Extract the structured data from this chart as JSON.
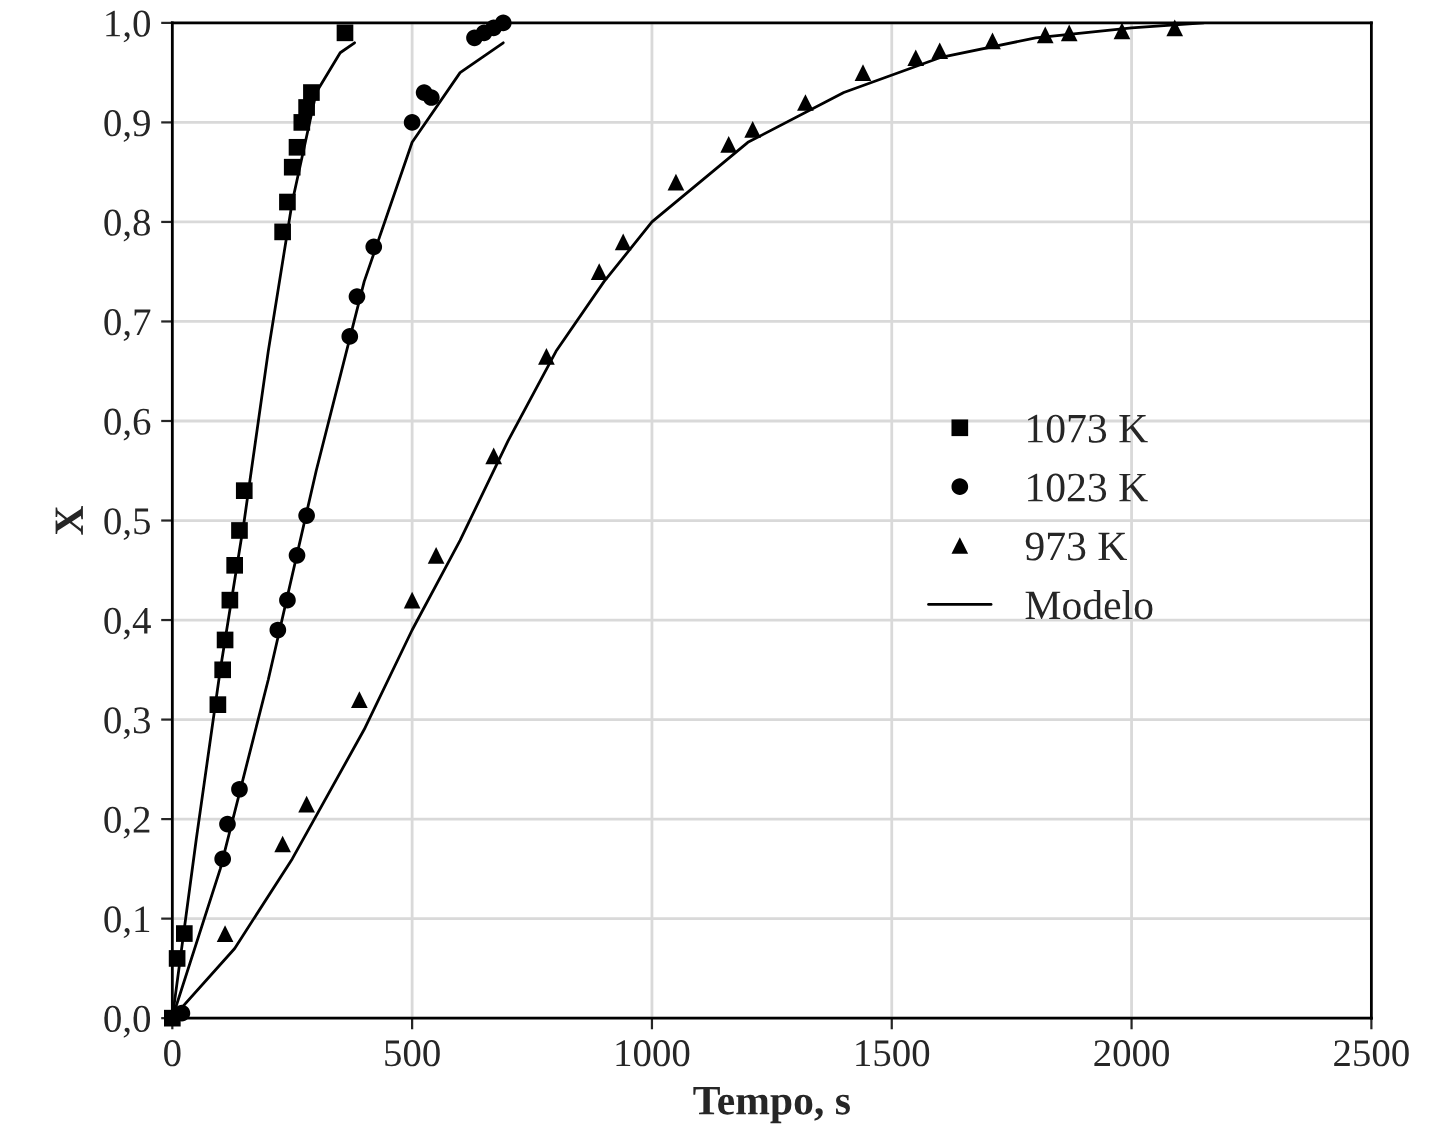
{
  "chart_data": {
    "type": "scatter",
    "xlabel": "Tempo, s",
    "ylabel": "X",
    "xlim": [
      0,
      2500
    ],
    "xticks": [
      0,
      500,
      1000,
      1500,
      2000,
      2500
    ],
    "ylim": [
      0,
      1
    ],
    "yticks": [
      {
        "value": 0,
        "label": "0,0"
      },
      {
        "value": 0.1,
        "label": "0,1"
      },
      {
        "value": 0.2,
        "label": "0,2"
      },
      {
        "value": 0.3,
        "label": "0,3"
      },
      {
        "value": 0.4,
        "label": "0,4"
      },
      {
        "value": 0.5,
        "label": "0,5"
      },
      {
        "value": 0.6,
        "label": "0,6"
      },
      {
        "value": 0.7,
        "label": "0,7"
      },
      {
        "value": 0.8,
        "label": "0,8"
      },
      {
        "value": 0.9,
        "label": "0,9"
      },
      {
        "value": 1.0,
        "label": "1,0"
      }
    ],
    "grid": true,
    "legend": "right",
    "series": [
      {
        "name": "1073 K",
        "marker": "square",
        "color": "#000000",
        "x": [
          0,
          10,
          25,
          95,
          105,
          110,
          120,
          130,
          140,
          150,
          230,
          240,
          250,
          260,
          270,
          280,
          290,
          360
        ],
        "values": [
          0,
          0.06,
          0.085,
          0.315,
          0.35,
          0.38,
          0.42,
          0.455,
          0.49,
          0.53,
          0.79,
          0.82,
          0.855,
          0.875,
          0.9,
          0.915,
          0.93,
          0.99
        ]
      },
      {
        "name": "1023 K",
        "marker": "circle",
        "color": "#000000",
        "x": [
          20,
          105,
          115,
          140,
          220,
          240,
          260,
          280,
          370,
          385,
          420,
          500,
          525,
          540,
          630,
          650,
          670,
          690
        ],
        "values": [
          0.005,
          0.16,
          0.195,
          0.23,
          0.39,
          0.42,
          0.465,
          0.505,
          0.685,
          0.725,
          0.775,
          0.9,
          0.93,
          0.925,
          0.985,
          0.99,
          0.995,
          1.0
        ]
      },
      {
        "name": "973 K",
        "marker": "triangle",
        "color": "#000000",
        "x": [
          110,
          230,
          280,
          390,
          500,
          550,
          670,
          780,
          890,
          940,
          1050,
          1160,
          1210,
          1320,
          1440,
          1550,
          1600,
          1710,
          1820,
          1870,
          1980,
          2090
        ],
        "values": [
          0.085,
          0.175,
          0.215,
          0.32,
          0.42,
          0.465,
          0.565,
          0.665,
          0.75,
          0.78,
          0.84,
          0.878,
          0.893,
          0.92,
          0.95,
          0.965,
          0.972,
          0.982,
          0.988,
          0.99,
          0.992,
          0.995
        ]
      },
      {
        "name": "Modelo",
        "type": "line",
        "marker": "none",
        "color": "#000000",
        "x": [
          0,
          50,
          100,
          150,
          200,
          250,
          300,
          350,
          380
        ],
        "values": [
          0,
          0.18,
          0.35,
          0.5,
          0.67,
          0.82,
          0.93,
          0.97,
          0.98
        ]
      },
      {
        "type": "line",
        "marker": "none",
        "color": "#000000",
        "x": [
          0,
          100,
          200,
          300,
          400,
          500,
          600,
          690
        ],
        "values": [
          0,
          0.15,
          0.34,
          0.55,
          0.74,
          0.88,
          0.95,
          0.98
        ]
      },
      {
        "type": "line",
        "marker": "none",
        "color": "#000000",
        "x": [
          0,
          130,
          250,
          400,
          500,
          600,
          700,
          800,
          900,
          1000,
          1200,
          1400,
          1600,
          1800,
          2000,
          2150
        ],
        "values": [
          0,
          0.07,
          0.16,
          0.29,
          0.39,
          0.48,
          0.58,
          0.67,
          0.74,
          0.8,
          0.88,
          0.93,
          0.965,
          0.985,
          0.995,
          1.0
        ]
      }
    ]
  }
}
